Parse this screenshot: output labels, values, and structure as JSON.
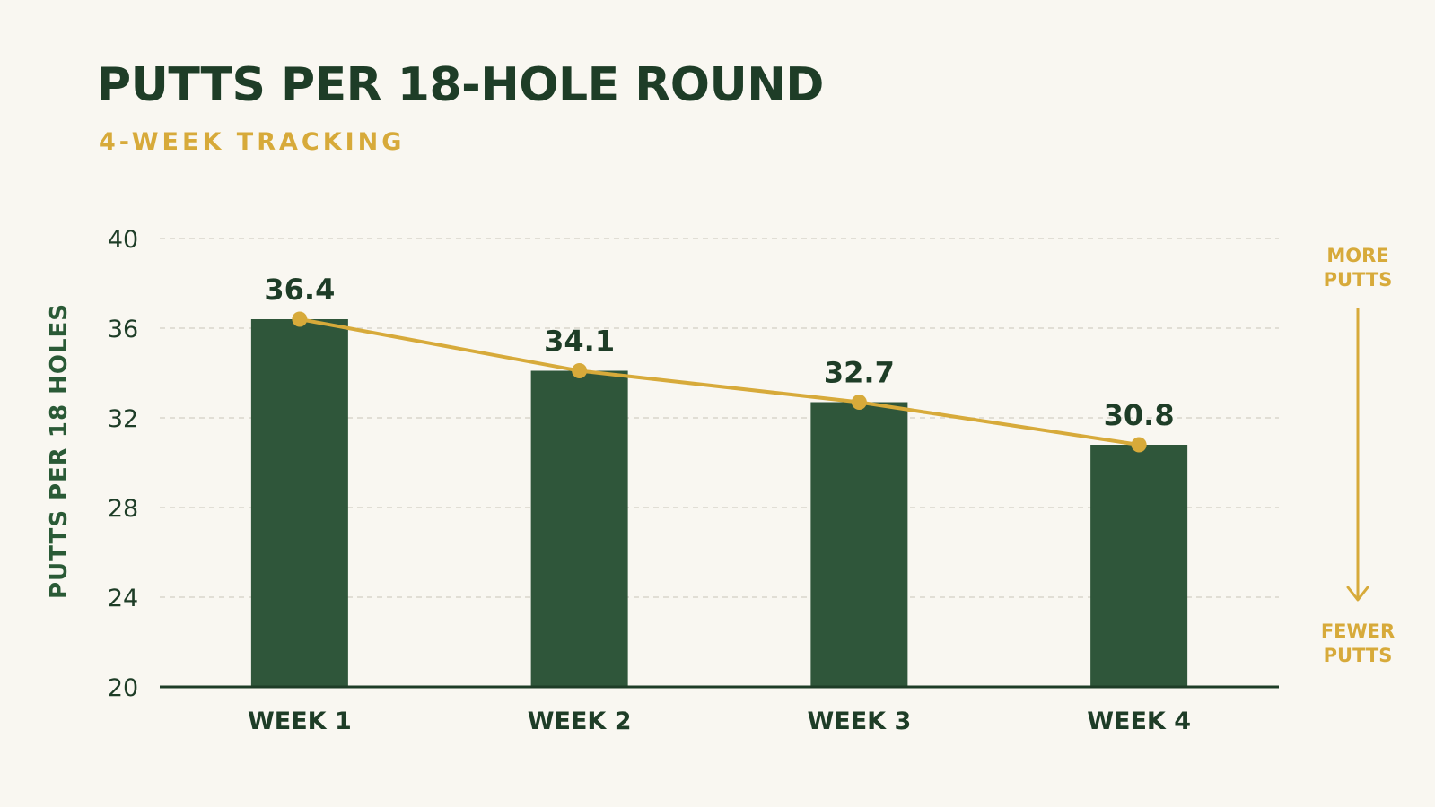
{
  "header": {
    "title": "PUTTS PER 18-HOLE ROUND",
    "subtitle": "4-WEEK TRACKING"
  },
  "legend": {
    "more_line1": "MORE",
    "more_line2": "PUTTS",
    "fewer_line1": "FEWER",
    "fewer_line2": "PUTTS"
  },
  "colors": {
    "bar": "#2f563a",
    "trend": "#d7aa3a",
    "text": "#1e3d27",
    "background": "#f9f7f1"
  },
  "chart_data": {
    "type": "bar",
    "title": "PUTTS PER 18-HOLE ROUND",
    "subtitle": "4-WEEK TRACKING",
    "xlabel": "",
    "ylabel": "PUTTS PER 18 HOLES",
    "categories": [
      "WEEK 1",
      "WEEK 2",
      "WEEK 3",
      "WEEK 4"
    ],
    "values": [
      36.4,
      34.1,
      32.7,
      30.8
    ],
    "data_labels": [
      "36.4",
      "34.1",
      "32.7",
      "30.8"
    ],
    "ylim": [
      20,
      40
    ],
    "yticks": [
      20,
      24,
      28,
      32,
      36,
      40
    ],
    "grid": true,
    "overlay": "line connecting bar tops"
  }
}
